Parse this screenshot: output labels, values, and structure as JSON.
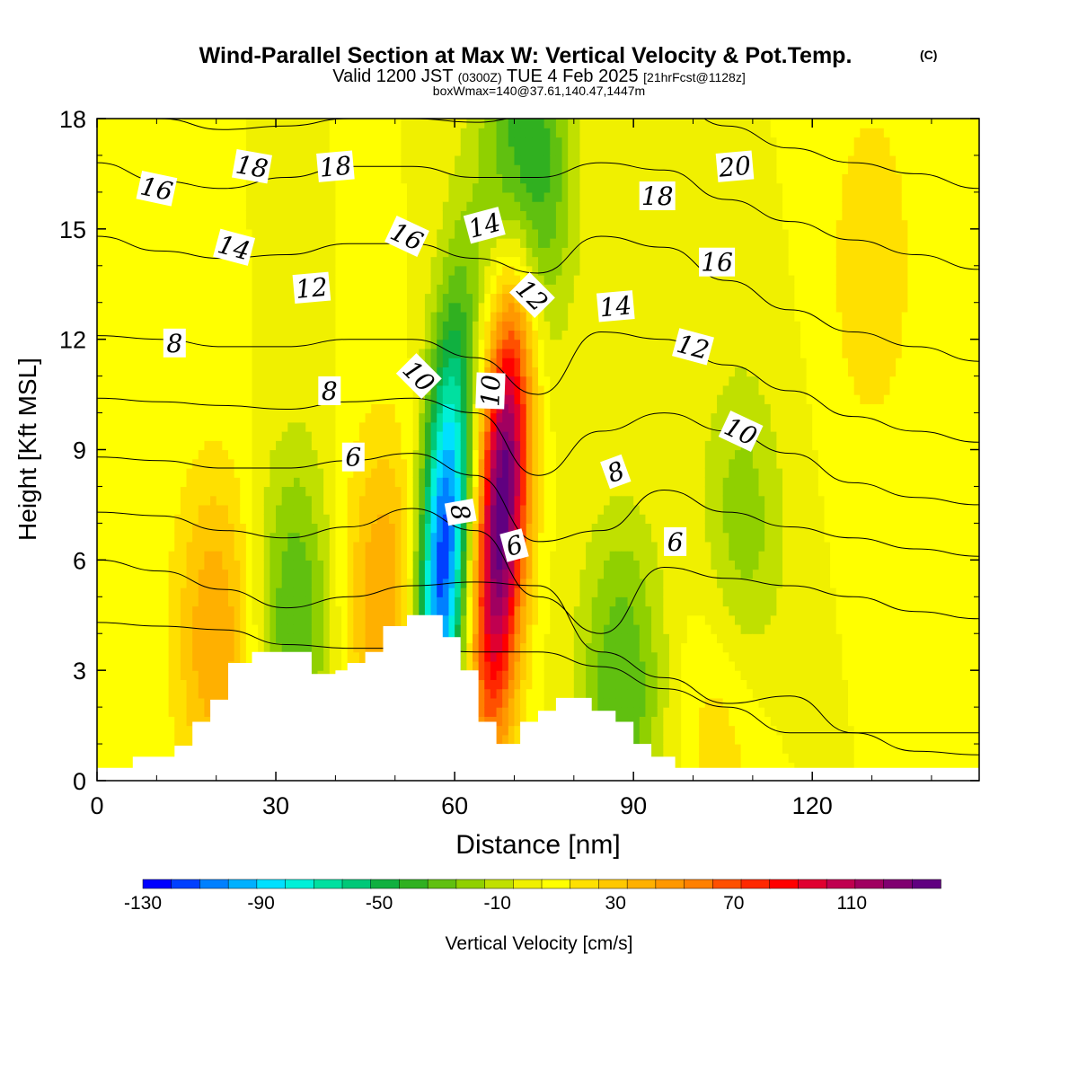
{
  "chart_data": {
    "type": "heatmap",
    "title": "Wind-Parallel Section at Max W: Vertical Velocity & Pot.Temp.",
    "copyright_mark": "(C)",
    "subtitle_parts": [
      "Valid 1200 JST",
      "(0300Z)",
      "TUE 4 Feb 2025",
      "[21hrFcst@1128z]"
    ],
    "subtitle2": "boxWmax=140@37.61,140.47,1447m",
    "xlabel": "Distance [nm]",
    "ylabel": "Height [Kft MSL]",
    "xlim": [
      0,
      148
    ],
    "ylim": [
      0,
      18
    ],
    "x_ticks": [
      0,
      30,
      60,
      90,
      120
    ],
    "x_tick_labels": [
      "0",
      "30",
      "60",
      "90",
      "120"
    ],
    "y_ticks": [
      0,
      3,
      6,
      9,
      12,
      15,
      18
    ],
    "y_tick_labels": [
      "0",
      "3",
      "6",
      "9",
      "12",
      "15",
      "18"
    ],
    "colorbar": {
      "label": "Vertical Velocity [cm/s]",
      "tick_values": [
        -130,
        -90,
        -50,
        -10,
        30,
        70,
        110
      ],
      "tick_labels": [
        "-130",
        "-90",
        "-50",
        "-10",
        "30",
        "70",
        "110"
      ],
      "levels": [
        -130,
        -120,
        -110,
        -100,
        -90,
        -80,
        -70,
        -60,
        -50,
        -40,
        -30,
        -20,
        -10,
        0,
        10,
        20,
        30,
        40,
        50,
        60,
        70,
        80,
        90,
        100,
        110,
        120,
        130,
        140
      ],
      "colors": [
        "#0000ff",
        "#0040ff",
        "#0080ff",
        "#00b0ff",
        "#00e0ff",
        "#00f0d8",
        "#00e0a0",
        "#00c878",
        "#10b040",
        "#30b020",
        "#60c010",
        "#90d000",
        "#c0e000",
        "#f0f000",
        "#ffff00",
        "#ffe000",
        "#ffc800",
        "#ffb000",
        "#ff9800",
        "#ff8000",
        "#ff5000",
        "#ff2800",
        "#ff0000",
        "#e00030",
        "#c00050",
        "#a00060",
        "#800070",
        "#600080"
      ]
    },
    "vertical_velocity_features": [
      {
        "kind": "updraft",
        "x": 68,
        "y": 7.5,
        "peak": 140
      },
      {
        "kind": "downdraft",
        "x": 58,
        "y": 6.0,
        "peak": -130
      },
      {
        "kind": "downdraft",
        "x": 72,
        "y": 16.5,
        "peak": -60
      },
      {
        "kind": "updraft",
        "x": 20,
        "y": 4.0,
        "peak": 40
      },
      {
        "kind": "updraft",
        "x": 48,
        "y": 5.0,
        "peak": 40
      },
      {
        "kind": "downdraft",
        "x": 33,
        "y": 4.5,
        "peak": -40
      },
      {
        "kind": "downdraft",
        "x": 88,
        "y": 2.5,
        "peak": -40
      },
      {
        "kind": "downdraft",
        "x": 108,
        "y": 6.5,
        "peak": -30
      },
      {
        "kind": "updraft",
        "x": 105,
        "y": 2.0,
        "peak": 20
      },
      {
        "kind": "updraft",
        "x": 130,
        "y": 14.0,
        "peak": 20
      }
    ],
    "terrain": [
      [
        0,
        0.35
      ],
      [
        6,
        0.35
      ],
      [
        6,
        0.65
      ],
      [
        13,
        0.65
      ],
      [
        13,
        0.95
      ],
      [
        16,
        0.95
      ],
      [
        16,
        1.6
      ],
      [
        19,
        1.6
      ],
      [
        19,
        2.2
      ],
      [
        22,
        2.2
      ],
      [
        22,
        3.2
      ],
      [
        26,
        3.2
      ],
      [
        26,
        3.5
      ],
      [
        36,
        3.5
      ],
      [
        36,
        2.9
      ],
      [
        40,
        2.9
      ],
      [
        40,
        3.0
      ],
      [
        42,
        3.0
      ],
      [
        42,
        3.2
      ],
      [
        45,
        3.2
      ],
      [
        45,
        3.5
      ],
      [
        48,
        3.5
      ],
      [
        48,
        4.2
      ],
      [
        52,
        4.2
      ],
      [
        52,
        4.5
      ],
      [
        58,
        4.5
      ],
      [
        58,
        3.9
      ],
      [
        61,
        3.9
      ],
      [
        61,
        3.0
      ],
      [
        64,
        3.0
      ],
      [
        64,
        1.6
      ],
      [
        67,
        1.6
      ],
      [
        67,
        1.0
      ],
      [
        71,
        1.0
      ],
      [
        71,
        1.6
      ],
      [
        74,
        1.6
      ],
      [
        74,
        1.9
      ],
      [
        77,
        1.9
      ],
      [
        77,
        2.25
      ],
      [
        83,
        2.25
      ],
      [
        83,
        1.9
      ],
      [
        87,
        1.9
      ],
      [
        87,
        1.6
      ],
      [
        90,
        1.6
      ],
      [
        90,
        1.0
      ],
      [
        93,
        1.0
      ],
      [
        93,
        0.65
      ],
      [
        97,
        0.65
      ],
      [
        97,
        0.35
      ],
      [
        148,
        0.35
      ]
    ],
    "theta_contours": [
      {
        "level": 2,
        "y": [
          4.3,
          4.2,
          4.1,
          3.7,
          3.6,
          3.6,
          3.5,
          3.5,
          3.1,
          2.5,
          2.0,
          1.3,
          1.3,
          1.3,
          1.3
        ]
      },
      {
        "level": 4,
        "y": [
          6.0,
          5.7,
          5.2,
          4.7,
          5.0,
          5.3,
          5.4,
          5.3,
          3.5,
          2.8,
          2.1,
          2.3,
          1.3,
          0.8,
          0.7
        ]
      },
      {
        "level": 6,
        "y": [
          7.3,
          7.2,
          6.8,
          6.6,
          6.9,
          7.4,
          6.8,
          5.0,
          4.0,
          5.8,
          5.5,
          5.3,
          5.0,
          4.6,
          4.4
        ]
      },
      {
        "level": 8,
        "y": [
          8.8,
          8.7,
          8.5,
          8.5,
          8.7,
          8.9,
          8.3,
          6.5,
          6.8,
          7.9,
          7.3,
          6.9,
          6.6,
          6.3,
          6.1
        ]
      },
      {
        "level": 10,
        "y": [
          10.4,
          10.3,
          10.2,
          10.1,
          10.3,
          10.4,
          10.0,
          8.3,
          9.5,
          10.0,
          9.5,
          8.9,
          8.1,
          7.7,
          7.5
        ]
      },
      {
        "level": 12,
        "y": [
          12.1,
          12.0,
          11.8,
          11.8,
          12.0,
          12.0,
          11.5,
          10.5,
          12.2,
          12.0,
          11.3,
          10.6,
          9.9,
          9.5,
          9.2
        ]
      },
      {
        "level": 14,
        "y": [
          14.8,
          14.4,
          14.2,
          14.3,
          14.6,
          14.6,
          14.2,
          13.8,
          14.8,
          14.5,
          13.6,
          12.8,
          12.2,
          11.8,
          11.4
        ]
      },
      {
        "level": 16,
        "y": [
          16.8,
          16.3,
          16.1,
          16.4,
          16.7,
          16.7,
          16.4,
          16.4,
          16.8,
          16.6,
          15.8,
          15.2,
          14.7,
          14.3,
          13.9
        ]
      },
      {
        "level": 18,
        "y": [
          18.5,
          18.0,
          17.7,
          17.8,
          18.0,
          18.0,
          17.9,
          18.1,
          18.6,
          18.6,
          17.8,
          17.2,
          16.8,
          16.5,
          16.1
        ]
      }
    ],
    "contour_labels": [
      {
        "text": "16",
        "x": 10,
        "y": 16.1,
        "rot": 12
      },
      {
        "text": "18",
        "x": 26,
        "y": 16.7,
        "rot": 10
      },
      {
        "text": "18",
        "x": 40,
        "y": 16.7,
        "rot": -5
      },
      {
        "text": "14",
        "x": 23,
        "y": 14.5,
        "rot": 15
      },
      {
        "text": "16",
        "x": 52,
        "y": 14.8,
        "rot": 25
      },
      {
        "text": "14",
        "x": 65,
        "y": 15.1,
        "rot": -15
      },
      {
        "text": "12",
        "x": 36,
        "y": 13.4,
        "rot": -5
      },
      {
        "text": "12",
        "x": 73,
        "y": 13.2,
        "rot": 45
      },
      {
        "text": "8",
        "x": 13,
        "y": 11.9,
        "rot": 0
      },
      {
        "text": "10",
        "x": 54,
        "y": 11.0,
        "rot": 45
      },
      {
        "text": "10",
        "x": 66,
        "y": 10.6,
        "rot": -88
      },
      {
        "text": "8",
        "x": 39,
        "y": 10.6,
        "rot": 0
      },
      {
        "text": "6",
        "x": 43,
        "y": 8.8,
        "rot": 0
      },
      {
        "text": "8",
        "x": 61,
        "y": 7.3,
        "rot": 80
      },
      {
        "text": "6",
        "x": 70,
        "y": 6.4,
        "rot": -15
      },
      {
        "text": "14",
        "x": 87,
        "y": 12.9,
        "rot": -5
      },
      {
        "text": "12",
        "x": 100,
        "y": 11.8,
        "rot": 15
      },
      {
        "text": "10",
        "x": 108,
        "y": 9.5,
        "rot": 25
      },
      {
        "text": "8",
        "x": 87,
        "y": 8.4,
        "rot": -20
      },
      {
        "text": "6",
        "x": 97,
        "y": 6.5,
        "rot": 0
      },
      {
        "text": "18",
        "x": 94,
        "y": 15.9,
        "rot": 0
      },
      {
        "text": "20",
        "x": 107,
        "y": 16.7,
        "rot": -5
      },
      {
        "text": "16",
        "x": 104,
        "y": 14.1,
        "rot": 0
      }
    ]
  }
}
